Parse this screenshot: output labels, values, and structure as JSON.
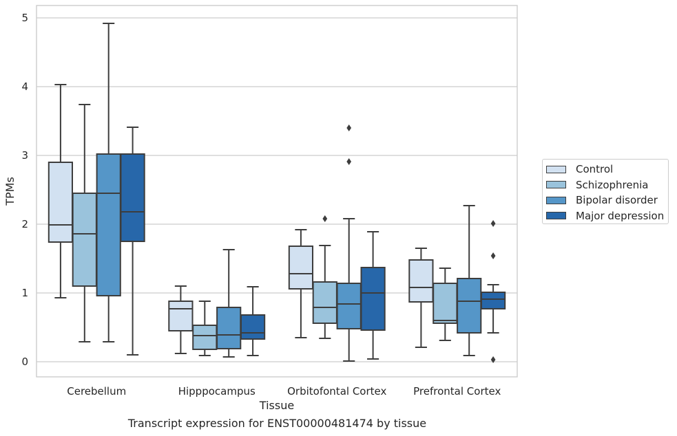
{
  "chart_data": {
    "type": "box",
    "title": "",
    "caption": "Transcript expression for ENST00000481474 by tissue",
    "xlabel": "Tissue",
    "ylabel": "TPMs",
    "ylim": [
      -0.22,
      5.18
    ],
    "yticks": [
      0,
      1,
      2,
      3,
      4,
      5
    ],
    "grid": true,
    "legend_position": "right",
    "categories": [
      "Cerebellum",
      "Hipppocampus",
      "Orbitofontal Cortex",
      "Prefrontal Cortex"
    ],
    "series": [
      {
        "name": "Control",
        "color": "#d2e1f1",
        "boxes": [
          {
            "whisker_low": 0.93,
            "q1": 1.74,
            "median": 1.99,
            "q3": 2.9,
            "whisker_high": 4.03,
            "outliers": []
          },
          {
            "whisker_low": 0.12,
            "q1": 0.45,
            "median": 0.77,
            "q3": 0.88,
            "whisker_high": 1.1,
            "outliers": []
          },
          {
            "whisker_low": 0.35,
            "q1": 1.06,
            "median": 1.28,
            "q3": 1.68,
            "whisker_high": 1.92,
            "outliers": []
          },
          {
            "whisker_low": 0.21,
            "q1": 0.87,
            "median": 1.08,
            "q3": 1.48,
            "whisker_high": 1.65,
            "outliers": []
          }
        ]
      },
      {
        "name": "Schizophrenia",
        "color": "#9ac3dc",
        "boxes": [
          {
            "whisker_low": 0.29,
            "q1": 1.1,
            "median": 1.86,
            "q3": 2.45,
            "whisker_high": 3.74,
            "outliers": []
          },
          {
            "whisker_low": 0.09,
            "q1": 0.18,
            "median": 0.38,
            "q3": 0.53,
            "whisker_high": 0.88,
            "outliers": []
          },
          {
            "whisker_low": 0.34,
            "q1": 0.56,
            "median": 0.79,
            "q3": 1.16,
            "whisker_high": 1.69,
            "outliers": [
              2.08
            ]
          },
          {
            "whisker_low": 0.31,
            "q1": 0.56,
            "median": 0.6,
            "q3": 1.14,
            "whisker_high": 1.36,
            "outliers": []
          }
        ]
      },
      {
        "name": "Bipolar disorder",
        "color": "#5596c8",
        "boxes": [
          {
            "whisker_low": 0.29,
            "q1": 0.96,
            "median": 2.45,
            "q3": 3.02,
            "whisker_high": 4.92,
            "outliers": []
          },
          {
            "whisker_low": 0.07,
            "q1": 0.19,
            "median": 0.39,
            "q3": 0.79,
            "whisker_high": 1.63,
            "outliers": []
          },
          {
            "whisker_low": 0.01,
            "q1": 0.48,
            "median": 0.84,
            "q3": 1.14,
            "whisker_high": 2.08,
            "outliers": [
              2.91,
              3.4
            ]
          },
          {
            "whisker_low": 0.09,
            "q1": 0.42,
            "median": 0.88,
            "q3": 1.21,
            "whisker_high": 2.27,
            "outliers": []
          }
        ]
      },
      {
        "name": "Major depression",
        "color": "#2767aa",
        "boxes": [
          {
            "whisker_low": 0.1,
            "q1": 1.75,
            "median": 2.18,
            "q3": 3.02,
            "whisker_high": 3.41,
            "outliers": []
          },
          {
            "whisker_low": 0.09,
            "q1": 0.33,
            "median": 0.42,
            "q3": 0.68,
            "whisker_high": 1.09,
            "outliers": []
          },
          {
            "whisker_low": 0.04,
            "q1": 0.46,
            "median": 1.0,
            "q3": 1.37,
            "whisker_high": 1.89,
            "outliers": []
          },
          {
            "whisker_low": 0.42,
            "q1": 0.77,
            "median": 0.91,
            "q3": 1.01,
            "whisker_high": 1.12,
            "outliers": [
              0.03,
              1.54,
              2.01
            ]
          }
        ]
      }
    ]
  }
}
